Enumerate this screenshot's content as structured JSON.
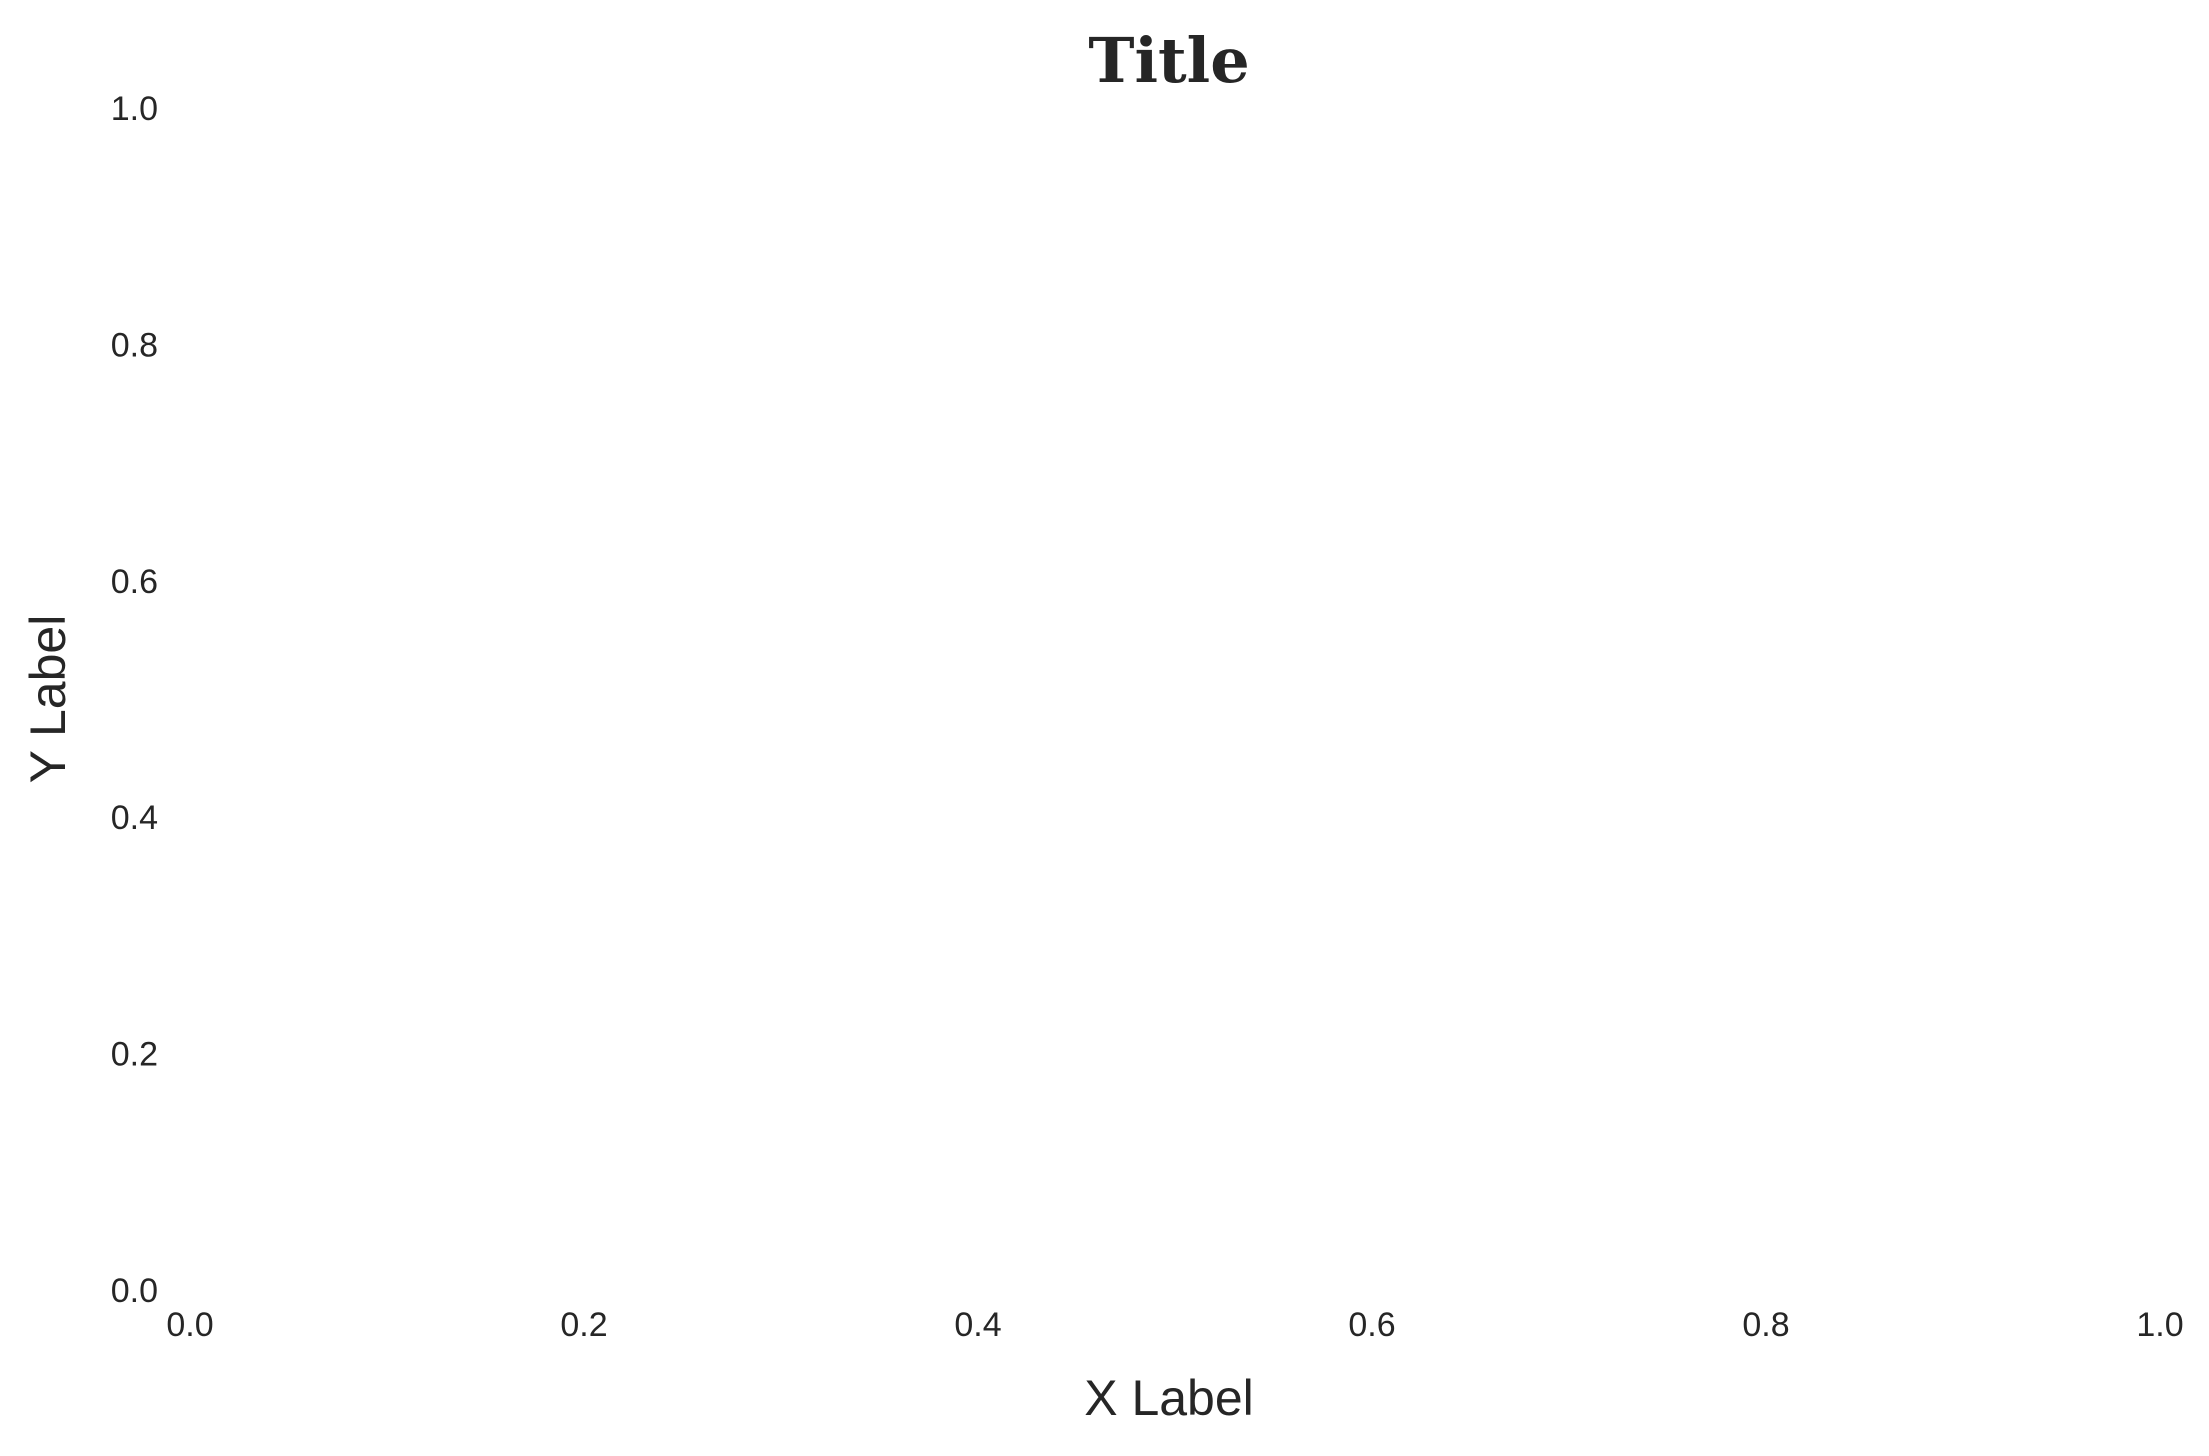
{
  "chart_data": {
    "type": "line",
    "title": "Title",
    "xlabel": "X Label",
    "ylabel": "Y Label",
    "xlim": [
      0.0,
      1.0
    ],
    "ylim": [
      0.0,
      1.0
    ],
    "xticks": [
      0.0,
      0.2,
      0.4,
      0.6,
      0.8,
      1.0
    ],
    "yticks": [
      0.0,
      0.2,
      0.4,
      0.6,
      0.8,
      1.0
    ],
    "xtick_labels": [
      "0.0",
      "0.2",
      "0.4",
      "0.6",
      "0.8",
      "1.0"
    ],
    "ytick_labels": [
      "0.0",
      "0.2",
      "0.4",
      "0.6",
      "0.8",
      "1.0"
    ],
    "series": [],
    "grid": false,
    "background_color": "#ffffff",
    "text_color": "#262626"
  }
}
